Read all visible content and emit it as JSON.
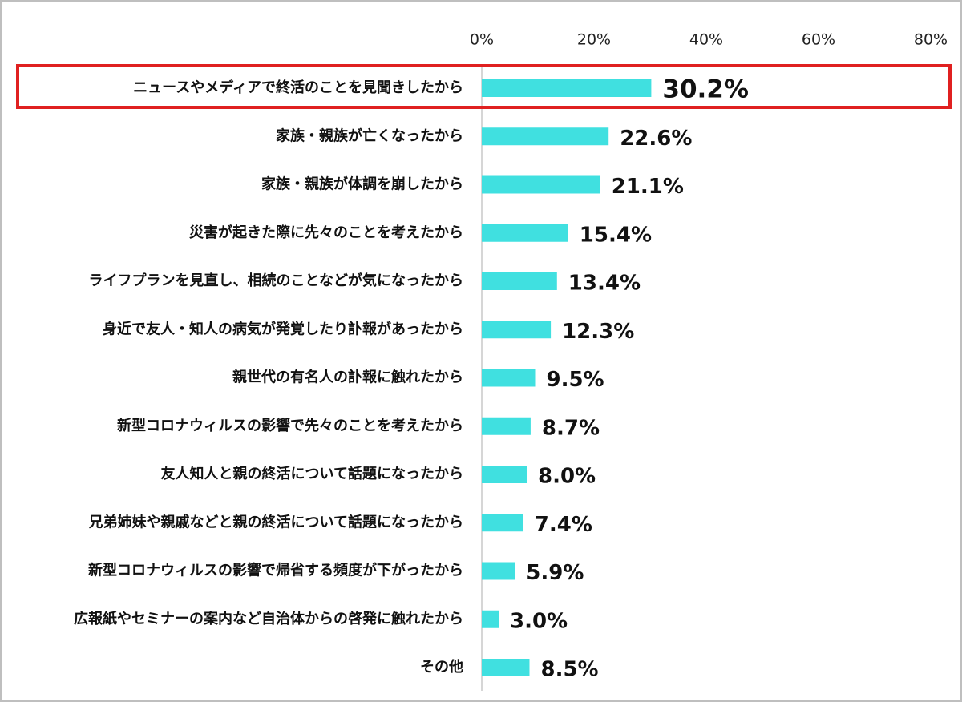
{
  "chart_data": {
    "type": "bar",
    "orientation": "horizontal",
    "color": "#40e0e0",
    "categories": [
      "ニュースやメディアで終活のことを見聞きしたから",
      "家族・親族が亡くなったから",
      "家族・親族が体調を崩したから",
      "災害が起きた際に先々のことを考えたから",
      "ライフプランを見直し、相続のことなどが気になったから",
      "身近で友人・知人の病気が発覚したり訃報があったから",
      "親世代の有名人の訃報に触れたから",
      "新型コロナウィルスの影響で先々のことを考えたから",
      "友人知人と親の終活について話題になったから",
      "兄弟姉妹や親戚などと親の終活について話題になったから",
      "新型コロナウィルスの影響で帰省する頻度が下がったから",
      "広報紙やセミナーの案内など自治体からの啓発に触れたから",
      "その他"
    ],
    "values": [
      30.2,
      22.6,
      21.1,
      15.4,
      13.4,
      12.3,
      9.5,
      8.7,
      8.0,
      7.4,
      5.9,
      3.0,
      8.5
    ],
    "value_labels": [
      "30.2%",
      "22.6%",
      "21.1%",
      "15.4%",
      "13.4%",
      "12.3%",
      "9.5%",
      "8.7%",
      "8.0%",
      "7.4%",
      "5.9%",
      "3.0%",
      "8.5%"
    ],
    "xlim": [
      0,
      80
    ],
    "xticks": [
      {
        "value": 0,
        "label": "0%"
      },
      {
        "value": 20,
        "label": "20%"
      },
      {
        "value": 40,
        "label": "40%"
      },
      {
        "value": 60,
        "label": "60%"
      },
      {
        "value": 80,
        "label": "80%"
      }
    ]
  }
}
